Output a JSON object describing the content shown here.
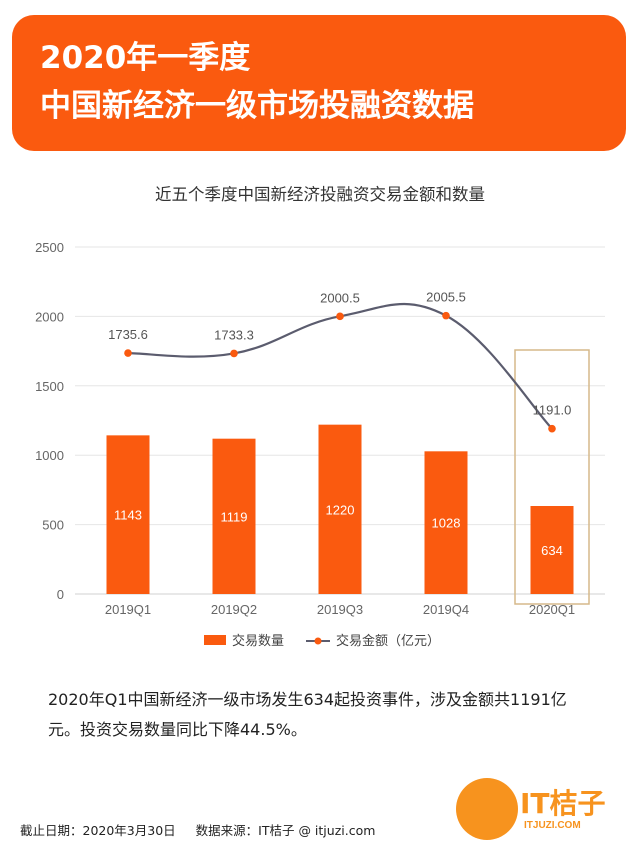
{
  "header": {
    "title_line1": "2020年一季度",
    "title_line2": "中国新经济一级市场投融资数据"
  },
  "chart_data": {
    "type": "bar",
    "title": "近五个季度中国新经济投融资交易金额和数量",
    "categories": [
      "2019Q1",
      "2019Q2",
      "2019Q3",
      "2019Q4",
      "2020Q1"
    ],
    "series": [
      {
        "name": "交易数量",
        "type": "bar",
        "values": [
          1143,
          1119,
          1220,
          1028,
          634
        ],
        "labels": [
          "1143",
          "1119",
          "1220",
          "1028",
          "634"
        ],
        "color": "#fa5a0f"
      },
      {
        "name": "交易金额（亿元）",
        "type": "line",
        "values": [
          1735.6,
          1733.3,
          2000.5,
          2005.5,
          1191.0
        ],
        "labels": [
          "1735.6",
          "1733.3",
          "2000.5",
          "2005.5",
          "1191.0"
        ],
        "color": "#5b5c6e",
        "marker_color": "#fa5a0f"
      }
    ],
    "yticks": [
      "0",
      "500",
      "1000",
      "1500",
      "2000",
      "2500"
    ],
    "ylim": [
      0,
      2500
    ],
    "grid": true,
    "legend_position": "bottom",
    "highlight_category": "2020Q1",
    "highlight_color": "#d6b98a"
  },
  "summary": {
    "line1": "2020年Q1中国新经济一级市场发生634起投资事件，涉及金额共1191亿",
    "line2": "元。投资交易数量同比下降44.5%。"
  },
  "footer": {
    "date": "截止日期：2020年3月30日",
    "source": "数据来源：IT桔子 @ itjuzi.com"
  },
  "logo": {
    "text": "IT桔子",
    "url": "ITJUZI.COM"
  }
}
